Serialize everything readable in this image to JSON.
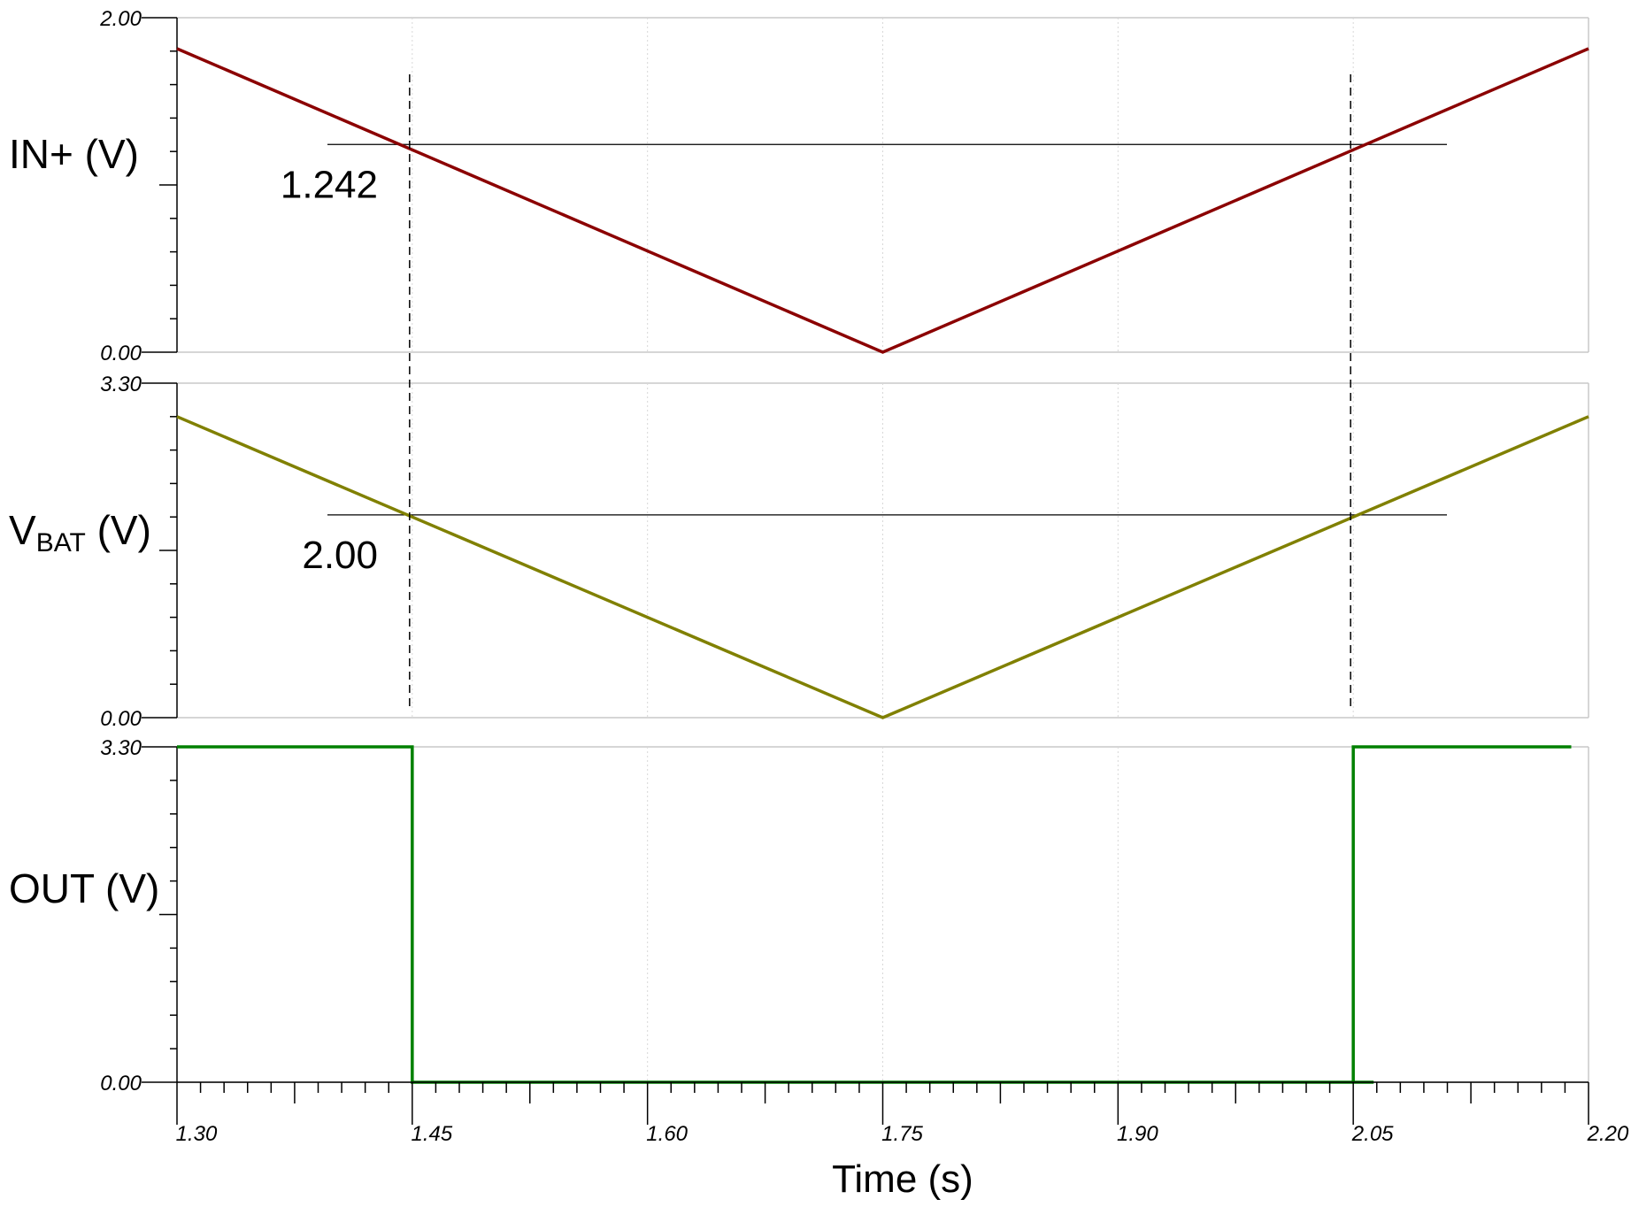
{
  "chart_data": {
    "type": "line",
    "xlabel": "Time (s)",
    "xlim": [
      1.3,
      2.2
    ],
    "x_ticks": [
      "1.30",
      "1.45",
      "1.60",
      "1.75",
      "1.90",
      "2.05",
      "2.20"
    ],
    "grid": "vertical dotted at major x ticks",
    "markers": {
      "vertical_dashed_x": [
        1.45,
        2.05
      ]
    },
    "panels": [
      {
        "ylabel": "IN+ (V)",
        "ylabel_main": "IN+ (V)",
        "ylim": [
          0,
          2.0
        ],
        "y_tick_labels": [
          "2.00",
          "0.00"
        ],
        "color": "#8B0000",
        "threshold": {
          "value": 1.242,
          "label": "1.242"
        },
        "series": [
          {
            "x": [
              1.3,
              1.75,
              2.2
            ],
            "y": [
              1.815,
              0.0,
              1.815
            ]
          }
        ]
      },
      {
        "ylabel": "VBAT (V)",
        "ylabel_main": "V",
        "ylabel_sub": "BAT",
        "ylabel_unit": " (V)",
        "ylim": [
          0,
          3.3
        ],
        "y_tick_labels": [
          "3.30",
          "0.00"
        ],
        "color": "#808000",
        "threshold": {
          "value": 2.0,
          "label": "2.00"
        },
        "series": [
          {
            "x": [
              1.3,
              1.75,
              2.2
            ],
            "y": [
              2.97,
              0.0,
              2.97
            ]
          }
        ]
      },
      {
        "ylabel": "OUT (V)",
        "ylabel_main": "OUT (V)",
        "ylim": [
          0,
          3.3
        ],
        "y_tick_labels": [
          "3.30",
          "0.00"
        ],
        "color": "#008000",
        "series": [
          {
            "x": [
              1.3,
              1.45,
              1.45,
              2.05,
              2.05,
              2.063,
              2.05,
              2.05,
              2.189
            ],
            "y": [
              3.3,
              3.3,
              0,
              0,
              0,
              0,
              0,
              3.3,
              3.3
            ]
          }
        ]
      }
    ]
  }
}
